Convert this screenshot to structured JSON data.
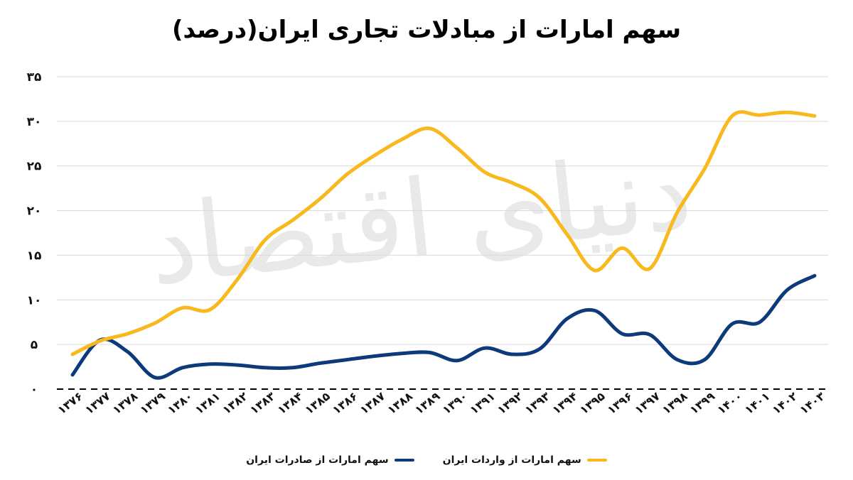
{
  "chart_data": {
    "type": "line",
    "title": "سهم امارات از مبادلات تجاری ایران(درصد)",
    "x": [
      "۱۳۷۶",
      "۱۳۷۷",
      "۱۳۷۸",
      "۱۳۷۹",
      "۱۳۸۰",
      "۱۳۸۱",
      "۱۳۸۲",
      "۱۳۸۳",
      "۱۳۸۴",
      "۱۳۸۵",
      "۱۳۸۶",
      "۱۳۸۷",
      "۱۳۸۸",
      "۱۳۸۹",
      "۱۳۹۰",
      "۱۳۹۱",
      "۱۳۹۲",
      "۱۳۹۳",
      "۱۳۹۴",
      "۱۳۹۵",
      "۱۳۹۶",
      "۱۳۹۷",
      "۱۳۹۸",
      "۱۳۹۹",
      "۱۴۰۰",
      "۱۴۰۱",
      "۱۴۰۲",
      "۱۴۰۳"
    ],
    "y_ticks": [
      0,
      5,
      10,
      15,
      20,
      25,
      30,
      35
    ],
    "y_tick_labels": [
      "۰",
      "۵",
      "۱۰",
      "۱۵",
      "۲۰",
      "۲۵",
      "۳۰",
      "۳۵"
    ],
    "ylim": [
      0,
      35
    ],
    "series": [
      {
        "name": "سهم امارات از صادرات ایران",
        "color": "#0d3a7a",
        "values": [
          1.6,
          5.5,
          4.2,
          1.3,
          2.4,
          2.8,
          2.7,
          2.4,
          2.4,
          2.9,
          3.3,
          3.7,
          4.0,
          4.1,
          3.2,
          4.6,
          3.9,
          4.5,
          7.9,
          8.8,
          6.2,
          6.1,
          3.3,
          3.3,
          7.3,
          7.5,
          11.1,
          12.7
        ]
      },
      {
        "name": "سهم امارات از واردات ایران",
        "color": "#f7b91e",
        "values": [
          3.9,
          5.4,
          6.2,
          7.4,
          9.1,
          8.9,
          12.3,
          16.7,
          18.9,
          21.3,
          24.1,
          26.2,
          28.0,
          29.2,
          27.0,
          24.3,
          23.1,
          21.4,
          17.3,
          13.3,
          15.8,
          13.5,
          19.8,
          24.7,
          30.6,
          30.7,
          31.0,
          30.6
        ]
      }
    ],
    "grid": true,
    "zero_line_style": "dashed",
    "legend_position": "bottom"
  }
}
